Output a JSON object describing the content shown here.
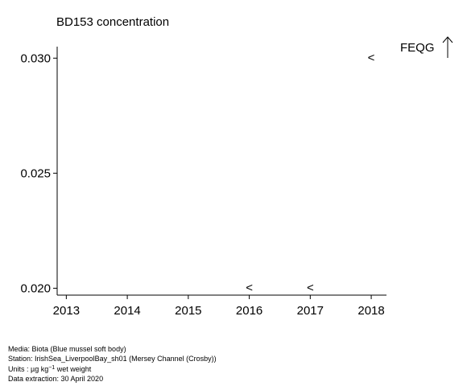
{
  "chart_data": {
    "type": "scatter",
    "title": "BD153 concentration",
    "xlabel": "",
    "ylabel": "",
    "xlim": [
      2012.85,
      2018.25
    ],
    "ylim": [
      0.0197,
      0.0305
    ],
    "x_ticks": [
      "2013",
      "2014",
      "2015",
      "2016",
      "2017",
      "2018"
    ],
    "y_ticks": [
      "0.020",
      "0.025",
      "0.030"
    ],
    "series": [
      {
        "marker": "<",
        "points": [
          {
            "x": 2016,
            "y": 0.02,
            "label": "<"
          },
          {
            "x": 2017,
            "y": 0.02,
            "label": "<"
          },
          {
            "x": 2018,
            "y": 0.03,
            "label": "<"
          }
        ]
      }
    ],
    "legend": {
      "label": "FEQG",
      "symbol": "up-arrow-icon",
      "placement": "top-right"
    }
  },
  "footer": {
    "media": "Media: Biota (Blue mussel soft body)",
    "station": "Station: IrishSea_LiverpoolBay_sh01 (Mersey Channel (Crosby))",
    "units_prefix": "Units : µg kg",
    "units_exp": "−1",
    "units_suffix": " wet weight",
    "extraction": "Data extraction: 30 April 2020"
  }
}
